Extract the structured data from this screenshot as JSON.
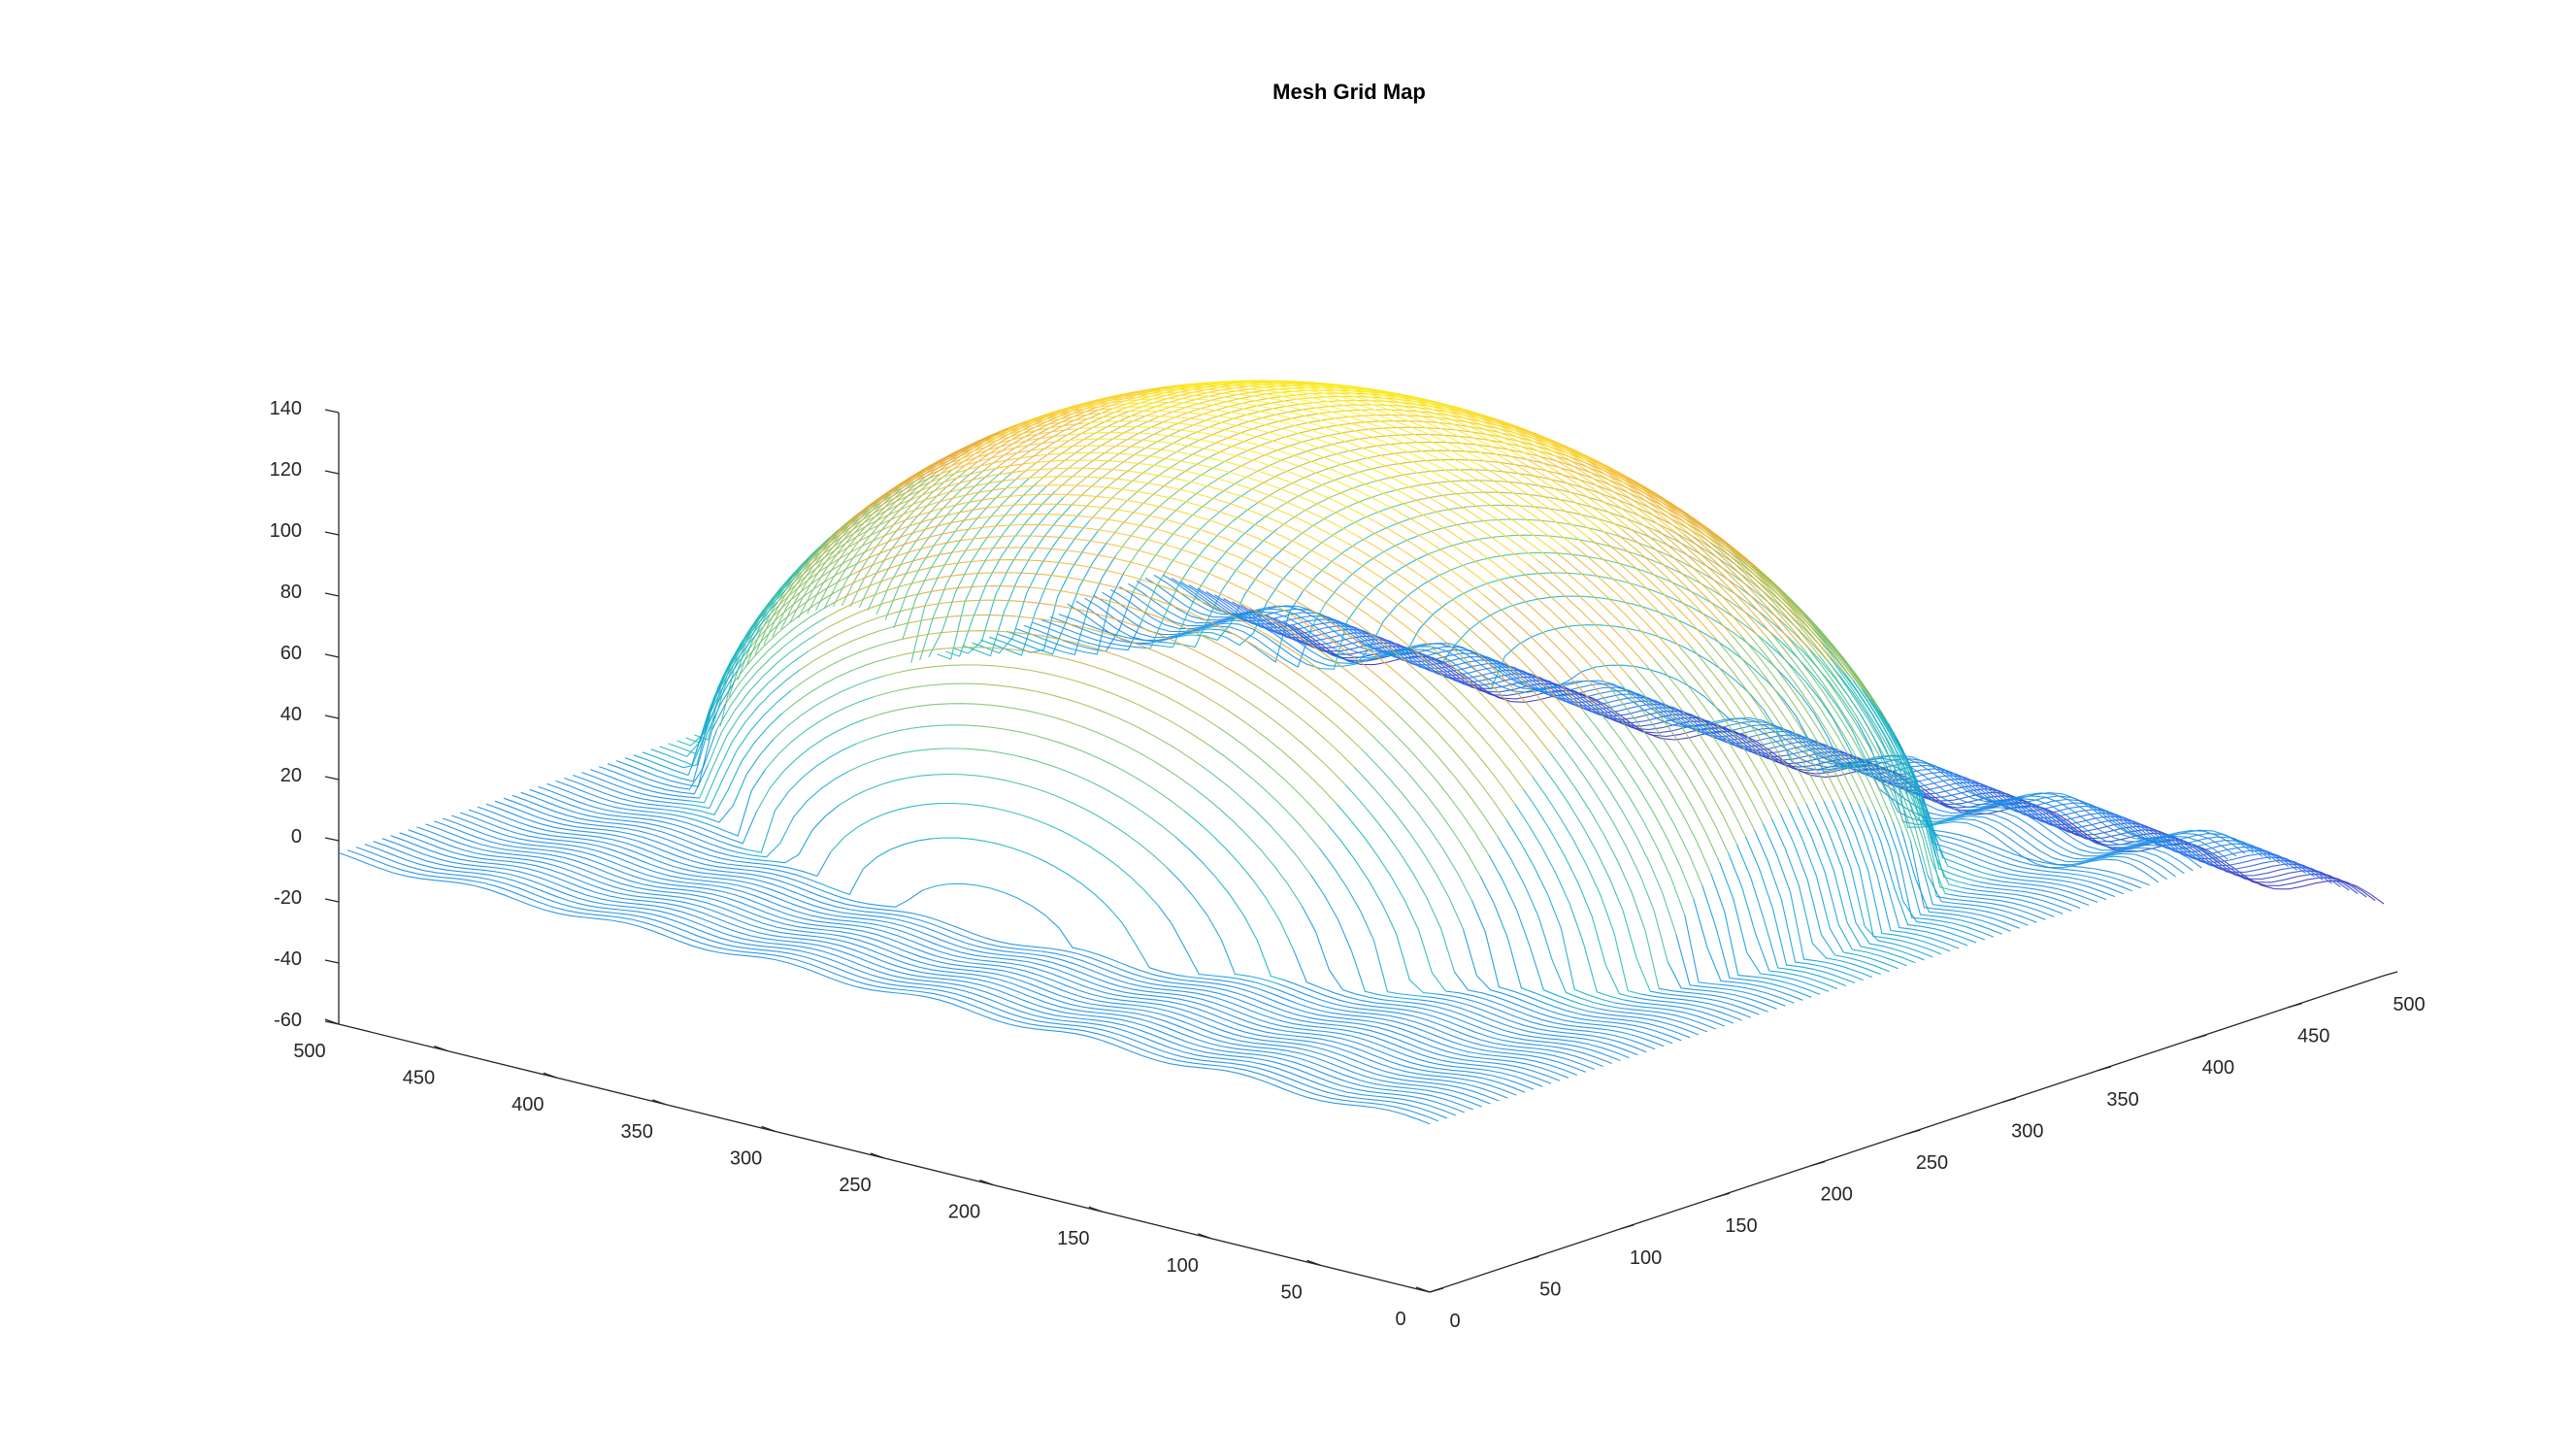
{
  "chart_data": {
    "type": "surface",
    "style": "mesh",
    "title": "Mesh Grid Map",
    "xlabel": "",
    "ylabel": "",
    "zlabel": "",
    "x_axis": {
      "range": [
        0,
        500
      ],
      "ticks": [
        0,
        50,
        100,
        150,
        200,
        250,
        300,
        350,
        400,
        450,
        500
      ],
      "tick_labels": [
        "0",
        "50",
        "100",
        "150",
        "200",
        "250",
        "300",
        "350",
        "400",
        "450",
        "500"
      ]
    },
    "y_axis": {
      "range": [
        0,
        500
      ],
      "ticks": [
        0,
        50,
        100,
        150,
        200,
        250,
        300,
        350,
        400,
        450,
        500
      ],
      "tick_labels": [
        "0",
        "50",
        "100",
        "150",
        "200",
        "250",
        "300",
        "350",
        "400",
        "450",
        "500"
      ]
    },
    "z_axis": {
      "range": [
        -60,
        140
      ],
      "ticks": [
        -60,
        -40,
        -20,
        0,
        20,
        40,
        60,
        80,
        100,
        120,
        140
      ],
      "tick_labels": [
        "-60",
        "-40",
        "-20",
        "0",
        "20",
        "40",
        "60",
        "80",
        "100",
        "120",
        "140"
      ]
    },
    "surface": {
      "shape": "dome",
      "base_z": -5,
      "peak_z": 130,
      "center": [
        250,
        270
      ],
      "footprint_radius": [
        175,
        240
      ],
      "colormap": "parula",
      "colormap_stops": [
        "#3E26A8",
        "#2D6EF5",
        "#0F9EDE",
        "#1DB9C0",
        "#55C48A",
        "#A7BF4F",
        "#E6AC3C",
        "#FCCB36",
        "#F9FB15"
      ]
    },
    "grid": false,
    "legend": "none",
    "view": "3d"
  }
}
